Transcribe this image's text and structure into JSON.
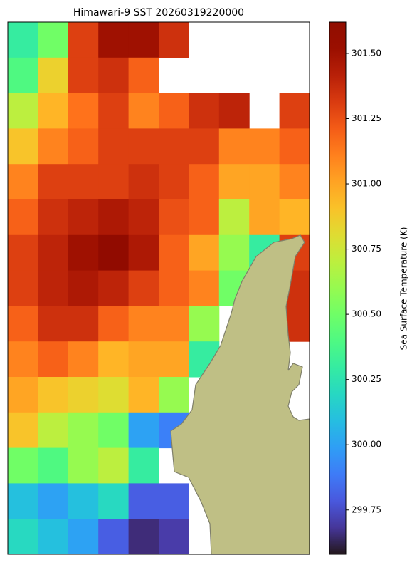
{
  "chart_data": {
    "type": "heatmap",
    "title": "Himawari-9 SST 20260319220000",
    "colorbar_label": "Sea Surface Temperature (K)",
    "colormap": "turbo",
    "clim": [
      299.58,
      301.62
    ],
    "cticks": [
      {
        "value": 299.75,
        "label": "299.75"
      },
      {
        "value": 300,
        "label": "300.00"
      },
      {
        "value": 300.25,
        "label": "300.25"
      },
      {
        "value": 300.5,
        "label": "300.50"
      },
      {
        "value": 300.75,
        "label": "300.75"
      },
      {
        "value": 301,
        "label": "301.00"
      },
      {
        "value": 301.25,
        "label": "301.25"
      },
      {
        "value": 301.5,
        "label": "301.50"
      }
    ],
    "values": [
      [
        300.3,
        300.5,
        301.3,
        301.5,
        301.5,
        301.35,
        null,
        null,
        null,
        null
      ],
      [
        300.4,
        300.85,
        301.3,
        301.35,
        301.2,
        null,
        null,
        null,
        null,
        null
      ],
      [
        300.7,
        300.95,
        301.15,
        301.3,
        301.1,
        301.2,
        301.35,
        301.4,
        null,
        301.3
      ],
      [
        300.9,
        301.1,
        301.2,
        301.3,
        301.3,
        301.3,
        301.3,
        301.1,
        301.1,
        301.2
      ],
      [
        301.1,
        301.3,
        301.3,
        301.3,
        301.35,
        301.3,
        301.2,
        301.0,
        301.0,
        301.1
      ],
      [
        301.2,
        301.35,
        301.4,
        301.45,
        301.4,
        301.25,
        301.2,
        300.7,
        301.0,
        300.95
      ],
      [
        301.3,
        301.4,
        301.5,
        301.58,
        301.45,
        301.2,
        301.0,
        300.6,
        300.3,
        301.3
      ],
      [
        301.3,
        301.4,
        301.45,
        301.4,
        301.3,
        301.2,
        301.1,
        300.5,
        null,
        301.35
      ],
      [
        301.2,
        301.35,
        301.35,
        301.2,
        301.1,
        301.1,
        300.6,
        null,
        null,
        301.35
      ],
      [
        301.1,
        301.2,
        301.1,
        300.95,
        301.0,
        301.0,
        300.3,
        null,
        null,
        null
      ],
      [
        301.0,
        300.9,
        300.85,
        300.8,
        300.95,
        300.6,
        null,
        null,
        null,
        null
      ],
      [
        300.9,
        300.7,
        300.6,
        300.5,
        300.0,
        299.9,
        null,
        null,
        null,
        null
      ],
      [
        300.5,
        300.4,
        300.6,
        300.7,
        300.3,
        null,
        null,
        null,
        null,
        null
      ],
      [
        300.1,
        300.0,
        300.1,
        300.2,
        299.8,
        299.8,
        null,
        null,
        null,
        null
      ],
      [
        300.2,
        300.1,
        300.0,
        299.8,
        299.65,
        299.7,
        null,
        null,
        null,
        null
      ]
    ]
  }
}
